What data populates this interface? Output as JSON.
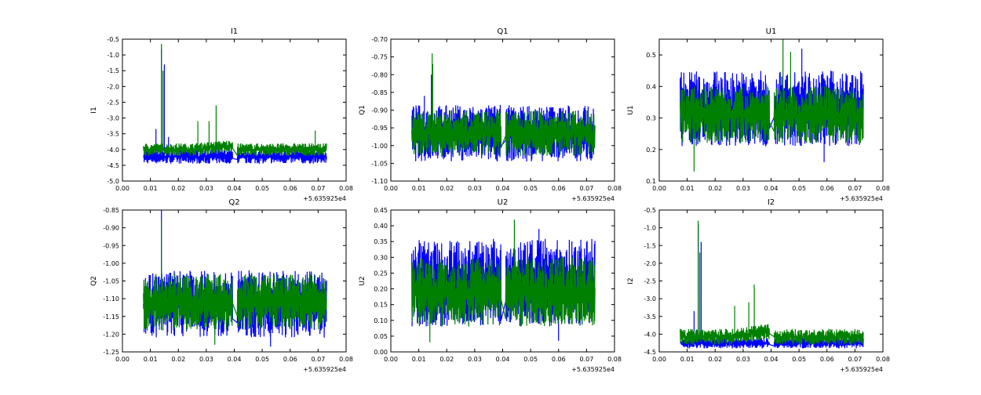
{
  "chart_data": [
    {
      "type": "line",
      "title": "I1",
      "ylabel": "I1",
      "xlim": [
        0,
        0.08
      ],
      "ylim": [
        -5.0,
        -0.5
      ],
      "xticks": [
        "0.00",
        "0.01",
        "0.02",
        "0.03",
        "0.04",
        "0.05",
        "0.06",
        "0.07",
        "0.08"
      ],
      "yticks": [
        "-5.0",
        "-4.5",
        "-4.0",
        "-3.5",
        "-3.0",
        "-2.5",
        "-2.0",
        "-1.5",
        "-1.0",
        "-0.5"
      ],
      "x_offset_label": "+5.635925e4",
      "x_range": [
        0.0075,
        0.073
      ],
      "gap": [
        0.0395,
        0.041
      ],
      "series": [
        {
          "name": "blue",
          "color": "#0000ff",
          "band": [
            -4.45,
            -4.0
          ],
          "spikes": [
            [
              0.012,
              -3.35
            ],
            [
              0.014,
              -0.8
            ],
            [
              0.015,
              -1.3
            ],
            [
              0.0165,
              -3.6
            ]
          ]
        },
        {
          "name": "green",
          "color": "#008000",
          "band": [
            -4.2,
            -3.8
          ],
          "trend": 0.3,
          "spikes": [
            [
              0.014,
              -0.65
            ],
            [
              0.0145,
              -1.5
            ],
            [
              0.027,
              -3.1
            ],
            [
              0.0335,
              -2.6
            ],
            [
              0.031,
              -3.1
            ],
            [
              0.069,
              -3.4
            ]
          ]
        }
      ]
    },
    {
      "type": "line",
      "title": "Q1",
      "ylabel": "Q1",
      "xlim": [
        0,
        0.08
      ],
      "ylim": [
        -1.1,
        -0.7
      ],
      "xticks": [
        "0.00",
        "0.01",
        "0.02",
        "0.03",
        "0.04",
        "0.05",
        "0.06",
        "0.07",
        "0.08"
      ],
      "yticks": [
        "-1.10",
        "-1.05",
        "-1.00",
        "-0.95",
        "-0.90",
        "-0.85",
        "-0.80",
        "-0.75",
        "-0.70"
      ],
      "x_offset_label": "+5.635925e4",
      "x_range": [
        0.0075,
        0.073
      ],
      "gap": [
        0.0395,
        0.041
      ],
      "series": [
        {
          "name": "blue",
          "color": "#0000ff",
          "band": [
            -1.045,
            -0.885
          ],
          "spikes": [
            [
              0.012,
              -0.86
            ],
            [
              0.0145,
              -0.8
            ]
          ]
        },
        {
          "name": "green",
          "color": "#008000",
          "band": [
            -1.03,
            -0.9
          ],
          "spikes": [
            [
              0.0148,
              -0.74
            ],
            [
              0.015,
              -0.77
            ]
          ]
        }
      ]
    },
    {
      "type": "line",
      "title": "U1",
      "ylabel": "U1",
      "xlim": [
        0,
        0.08
      ],
      "ylim": [
        0.1,
        0.55
      ],
      "xticks": [
        "0.00",
        "0.01",
        "0.02",
        "0.03",
        "0.04",
        "0.05",
        "0.06",
        "0.07",
        "0.08"
      ],
      "yticks": [
        "0.1",
        "0.2",
        "0.3",
        "0.4",
        "0.5"
      ],
      "x_offset_label": "+5.635925e4",
      "x_range": [
        0.0075,
        0.073
      ],
      "gap": [
        0.0395,
        0.041
      ],
      "series": [
        {
          "name": "blue",
          "color": "#0000ff",
          "band": [
            0.21,
            0.45
          ],
          "spikes": [
            [
              0.059,
              0.16
            ],
            [
              0.051,
              0.52
            ]
          ]
        },
        {
          "name": "green",
          "color": "#008000",
          "band": [
            0.22,
            0.4
          ],
          "spikes": [
            [
              0.0443,
              0.55
            ],
            [
              0.0125,
              0.13
            ],
            [
              0.047,
              0.51
            ]
          ]
        }
      ]
    },
    {
      "type": "line",
      "title": "Q2",
      "ylabel": "Q2",
      "xlim": [
        0,
        0.08
      ],
      "ylim": [
        -1.25,
        -0.85
      ],
      "xticks": [
        "0.00",
        "0.01",
        "0.02",
        "0.03",
        "0.04",
        "0.05",
        "0.06",
        "0.07",
        "0.08"
      ],
      "yticks": [
        "-1.25",
        "-1.20",
        "-1.15",
        "-1.10",
        "-1.05",
        "-1.00",
        "-0.95",
        "-0.90",
        "-0.85"
      ],
      "x_offset_label": "+5.635925e4",
      "x_range": [
        0.0075,
        0.073
      ],
      "gap": [
        0.0395,
        0.041
      ],
      "series": [
        {
          "name": "blue",
          "color": "#0000ff",
          "band": [
            -1.21,
            -1.02
          ],
          "spikes": [
            [
              0.014,
              -0.85
            ],
            [
              0.053,
              -1.235
            ]
          ]
        },
        {
          "name": "green",
          "color": "#008000",
          "band": [
            -1.19,
            -1.03
          ],
          "spikes": [
            [
              0.014,
              -0.88
            ],
            [
              0.033,
              -1.23
            ]
          ]
        }
      ]
    },
    {
      "type": "line",
      "title": "U2",
      "ylabel": "U2",
      "xlim": [
        0,
        0.08
      ],
      "ylim": [
        0,
        0.45
      ],
      "xticks": [
        "0.00",
        "0.01",
        "0.02",
        "0.03",
        "0.04",
        "0.05",
        "0.06",
        "0.07",
        "0.08"
      ],
      "yticks": [
        "0.00",
        "0.05",
        "0.10",
        "0.15",
        "0.20",
        "0.25",
        "0.30",
        "0.35",
        "0.40",
        "0.45"
      ],
      "x_offset_label": "+5.635925e4",
      "x_range": [
        0.0075,
        0.073
      ],
      "gap": [
        0.0395,
        0.041
      ],
      "series": [
        {
          "name": "blue",
          "color": "#0000ff",
          "band": [
            0.08,
            0.36
          ],
          "spikes": [
            [
              0.053,
              0.39
            ],
            [
              0.06,
              0.035
            ]
          ]
        },
        {
          "name": "green",
          "color": "#008000",
          "band": [
            0.08,
            0.3
          ],
          "spikes": [
            [
              0.0442,
              0.42
            ],
            [
              0.014,
              0.03
            ]
          ]
        }
      ]
    },
    {
      "type": "line",
      "title": "I2",
      "ylabel": "I2",
      "xlim": [
        0,
        0.08
      ],
      "ylim": [
        -4.5,
        -0.5
      ],
      "xticks": [
        "0.00",
        "0.01",
        "0.02",
        "0.03",
        "0.04",
        "0.05",
        "0.06",
        "0.07",
        "0.08"
      ],
      "yticks": [
        "-4.5",
        "-4.0",
        "-3.5",
        "-3.0",
        "-2.5",
        "-2.0",
        "-1.5",
        "-1.0",
        "-0.5"
      ],
      "x_offset_label": "+5.635925e4",
      "x_range": [
        0.0075,
        0.073
      ],
      "gap": [
        0.0395,
        0.041
      ],
      "series": [
        {
          "name": "blue",
          "color": "#0000ff",
          "band": [
            -4.4,
            -4.1
          ],
          "spikes": [
            [
              0.0125,
              -3.35
            ],
            [
              0.014,
              -0.9
            ],
            [
              0.015,
              -1.4
            ]
          ]
        },
        {
          "name": "green",
          "color": "#008000",
          "band": [
            -4.3,
            -3.85
          ],
          "trend": 0.35,
          "spikes": [
            [
              0.014,
              -0.8
            ],
            [
              0.0145,
              -1.7
            ],
            [
              0.034,
              -2.6
            ],
            [
              0.027,
              -3.2
            ],
            [
              0.032,
              -3.1
            ]
          ]
        }
      ]
    }
  ]
}
